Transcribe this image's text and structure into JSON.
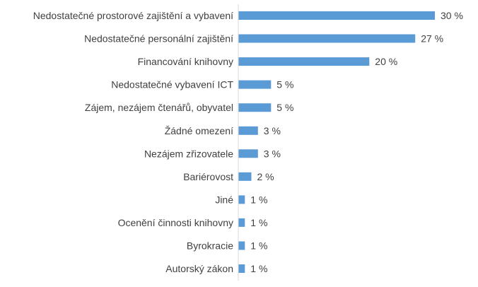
{
  "chart_data": {
    "type": "bar",
    "orientation": "horizontal",
    "title": "",
    "xlabel": "",
    "ylabel": "",
    "categories": [
      "Nedostatečné prostorové zajištění a vybavení",
      "Nedostatečné personální zajištění",
      "Financování knihovny",
      "Nedostatečné vybavení ICT",
      "Zájem, nezájem čtenářů, obyvatel",
      "Žádné omezení",
      "Nezájem zřizovatele",
      "Bariérovost",
      "Jiné",
      "Ocenění činnosti knihovny",
      "Byrokracie",
      "Autorský zákon"
    ],
    "values": [
      30,
      27,
      20,
      5,
      5,
      3,
      3,
      2,
      1,
      1,
      1,
      1
    ],
    "value_labels": [
      "30 %",
      "27 %",
      "20 %",
      "5 %",
      "5 %",
      "3 %",
      "3 %",
      "2 %",
      "1 %",
      "1 %",
      "1 %",
      "1 %"
    ],
    "xlim": [
      0,
      30
    ],
    "grid": false,
    "legend": "none",
    "bar_color": "#5B9BD5",
    "axis_color": "#D9D9D9",
    "text_color": "#404040"
  }
}
